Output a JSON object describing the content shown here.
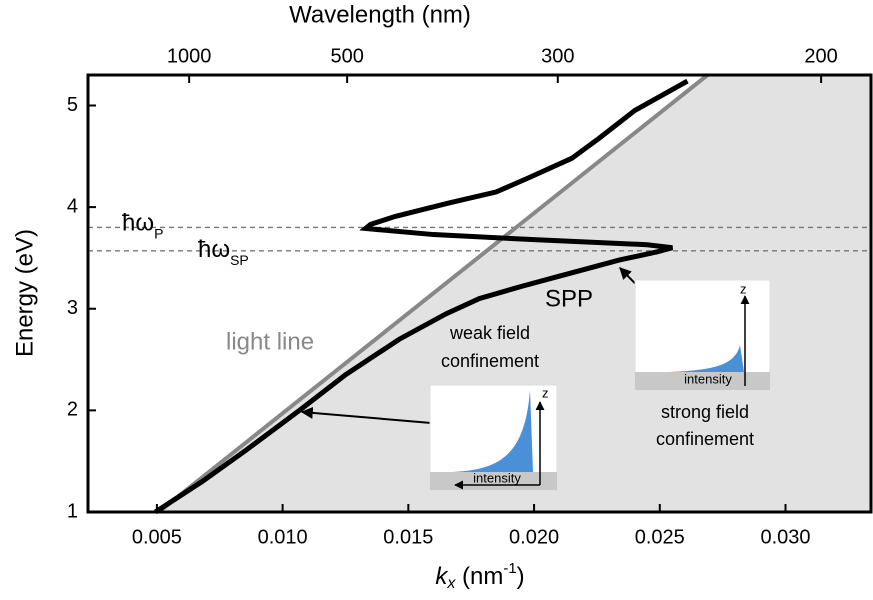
{
  "chart_data": {
    "type": "line",
    "x2label": "Wavelength (nm)",
    "ylabel": "Energy (eV)",
    "xlabel": [
      "k",
      "x",
      " (nm",
      "-1",
      ")"
    ],
    "xlim": [
      0.00226,
      0.0334
    ],
    "ylim": [
      1,
      5.3
    ],
    "xticks": [
      0.005,
      {
        "value": 0.01,
        "label": "0.010"
      },
      0.015,
      {
        "value": 0.02,
        "label": "0.020"
      },
      0.025,
      {
        "value": 0.03,
        "label": "0.030"
      }
    ],
    "yticks": [
      1,
      2,
      3,
      4,
      5
    ],
    "x2ticks": [
      1000,
      500,
      300,
      200
    ],
    "series": [
      {
        "name": "light line",
        "color": "#888888",
        "x": [
          0.00507,
          0.0269
        ],
        "values": [
          1,
          5.3
        ]
      },
      {
        "name": "SPP",
        "color": "#000000",
        "x": [
          0.00494,
          0.0068,
          0.0085,
          0.01067,
          0.0125,
          0.01464,
          0.0165,
          0.01782,
          0.0195,
          0.021,
          0.0225,
          0.0234,
          0.0249,
          0.0255,
          0.0245,
          0.02,
          0.016,
          0.0133,
          0.0135,
          0.0145,
          0.0166,
          0.0185,
          0.0198,
          0.0215,
          0.0226,
          0.024,
          0.0261
        ],
        "values": [
          1.0,
          1.3,
          1.6,
          2.0,
          2.35,
          2.7,
          2.95,
          3.1,
          3.22,
          3.32,
          3.42,
          3.48,
          3.56,
          3.6,
          3.63,
          3.68,
          3.73,
          3.79,
          3.83,
          3.91,
          4.04,
          4.15,
          4.29,
          4.48,
          4.68,
          4.95,
          5.24
        ]
      }
    ],
    "hlines": [
      {
        "label": "ħω",
        "sub": "P",
        "value": 3.8
      },
      {
        "label": "ħω",
        "sub": "SP",
        "value": 3.57
      }
    ],
    "annotations": {
      "weak": [
        "weak field",
        "confinement"
      ],
      "strong": [
        "strong field",
        "confinement"
      ],
      "insets": [
        {
          "axis": "z",
          "intensity": "intensity"
        },
        {
          "axis": "z",
          "intensity": "intensity"
        }
      ]
    }
  }
}
